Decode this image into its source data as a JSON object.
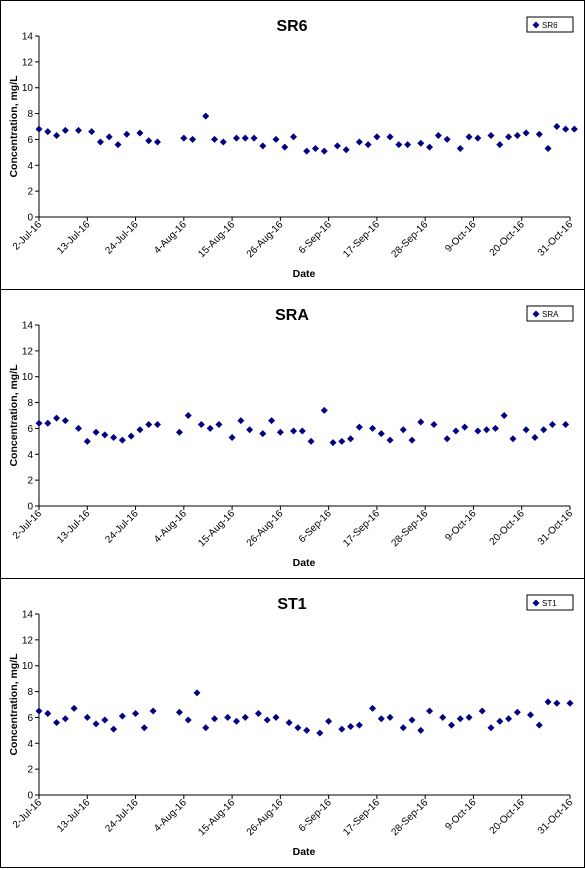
{
  "chart_data": [
    {
      "type": "scatter",
      "title": "SR6",
      "xlabel": "Date",
      "ylabel": "Concentration, mg/L",
      "legend": {
        "entries": [
          "SR6"
        ],
        "position": "top-right"
      },
      "ylim": [
        0,
        14
      ],
      "yticks": [
        "0",
        "2",
        "4",
        "6",
        "8",
        "10",
        "12",
        "14"
      ],
      "xlim": [
        "2-Jul-16",
        "31-Oct-16"
      ],
      "xticks": [
        "2-Jul-16",
        "13-Jul-16",
        "24-Jul-16",
        "4-Aug-16",
        "15-Aug-16",
        "26-Aug-16",
        "6-Sep-16",
        "17-Sep-16",
        "28-Sep-16",
        "9-Oct-16",
        "20-Oct-16",
        "31-Oct-16"
      ],
      "marker_color": "#000080",
      "series": [
        {
          "name": "SR6",
          "x": [
            "2016-07-02",
            "2016-07-04",
            "2016-07-06",
            "2016-07-08",
            "2016-07-11",
            "2016-07-14",
            "2016-07-16",
            "2016-07-18",
            "2016-07-20",
            "2016-07-22",
            "2016-07-25",
            "2016-07-27",
            "2016-07-29",
            "2016-08-04",
            "2016-08-06",
            "2016-08-09",
            "2016-08-11",
            "2016-08-13",
            "2016-08-16",
            "2016-08-18",
            "2016-08-20",
            "2016-08-22",
            "2016-08-25",
            "2016-08-27",
            "2016-08-29",
            "2016-09-01",
            "2016-09-03",
            "2016-09-05",
            "2016-09-08",
            "2016-09-10",
            "2016-09-13",
            "2016-09-15",
            "2016-09-17",
            "2016-09-20",
            "2016-09-22",
            "2016-09-24",
            "2016-09-27",
            "2016-09-29",
            "2016-10-01",
            "2016-10-03",
            "2016-10-06",
            "2016-10-08",
            "2016-10-10",
            "2016-10-13",
            "2016-10-15",
            "2016-10-17",
            "2016-10-19",
            "2016-10-21",
            "2016-10-24",
            "2016-10-26",
            "2016-10-28",
            "2016-10-30",
            "2016-11-01"
          ],
          "y": [
            6.8,
            6.6,
            6.3,
            6.7,
            6.7,
            6.6,
            5.8,
            6.2,
            5.6,
            6.4,
            6.5,
            5.9,
            5.8,
            6.1,
            6.0,
            7.8,
            6.0,
            5.8,
            6.1,
            6.1,
            6.1,
            5.5,
            6.0,
            5.4,
            6.2,
            5.1,
            5.3,
            5.1,
            5.5,
            5.2,
            5.8,
            5.6,
            6.2,
            6.2,
            5.6,
            5.6,
            5.7,
            5.4,
            6.3,
            6.0,
            5.3,
            6.2,
            6.1,
            6.3,
            5.6,
            6.2,
            6.3,
            6.5,
            6.4,
            5.3,
            7.0,
            6.8,
            6.8
          ]
        }
      ]
    },
    {
      "type": "scatter",
      "title": "SRA",
      "xlabel": "Date",
      "ylabel": "Concentration, mg/L",
      "legend": {
        "entries": [
          "SRA"
        ],
        "position": "top-right"
      },
      "ylim": [
        0,
        14
      ],
      "yticks": [
        "0",
        "2",
        "4",
        "6",
        "8",
        "10",
        "12",
        "14"
      ],
      "xlim": [
        "2-Jul-16",
        "31-Oct-16"
      ],
      "xticks": [
        "2-Jul-16",
        "13-Jul-16",
        "24-Jul-16",
        "4-Aug-16",
        "15-Aug-16",
        "26-Aug-16",
        "6-Sep-16",
        "17-Sep-16",
        "28-Sep-16",
        "9-Oct-16",
        "20-Oct-16",
        "31-Oct-16"
      ],
      "marker_color": "#000080",
      "series": [
        {
          "name": "SRA",
          "x": [
            "2016-07-02",
            "2016-07-04",
            "2016-07-06",
            "2016-07-08",
            "2016-07-11",
            "2016-07-13",
            "2016-07-15",
            "2016-07-17",
            "2016-07-19",
            "2016-07-21",
            "2016-07-23",
            "2016-07-25",
            "2016-07-27",
            "2016-07-29",
            "2016-08-03",
            "2016-08-05",
            "2016-08-08",
            "2016-08-10",
            "2016-08-12",
            "2016-08-15",
            "2016-08-17",
            "2016-08-19",
            "2016-08-22",
            "2016-08-24",
            "2016-08-26",
            "2016-08-29",
            "2016-08-31",
            "2016-09-02",
            "2016-09-05",
            "2016-09-07",
            "2016-09-09",
            "2016-09-11",
            "2016-09-13",
            "2016-09-16",
            "2016-09-18",
            "2016-09-20",
            "2016-09-23",
            "2016-09-25",
            "2016-09-27",
            "2016-09-30",
            "2016-10-03",
            "2016-10-05",
            "2016-10-07",
            "2016-10-10",
            "2016-10-12",
            "2016-10-14",
            "2016-10-16",
            "2016-10-18",
            "2016-10-21",
            "2016-10-23",
            "2016-10-25",
            "2016-10-27",
            "2016-10-30"
          ],
          "y": [
            6.4,
            6.4,
            6.8,
            6.6,
            6.0,
            5.0,
            5.7,
            5.5,
            5.3,
            5.1,
            5.4,
            5.9,
            6.3,
            6.3,
            5.7,
            7.0,
            6.3,
            6.0,
            6.3,
            5.3,
            6.6,
            5.9,
            5.6,
            6.6,
            5.7,
            5.8,
            5.8,
            5.0,
            7.4,
            4.9,
            5.0,
            5.2,
            6.1,
            6.0,
            5.6,
            5.1,
            5.9,
            5.1,
            6.5,
            6.3,
            5.2,
            5.8,
            6.1,
            5.8,
            5.9,
            6.0,
            7.0,
            5.2,
            5.9,
            5.3,
            5.9,
            6.3,
            6.3
          ]
        }
      ]
    },
    {
      "type": "scatter",
      "title": "ST1",
      "xlabel": "Date",
      "ylabel": "Concentration, mg/L",
      "legend": {
        "entries": [
          "ST1"
        ],
        "position": "top-right"
      },
      "ylim": [
        0,
        14
      ],
      "yticks": [
        "0",
        "2",
        "4",
        "6",
        "8",
        "10",
        "12",
        "14"
      ],
      "xlim": [
        "2-Jul-16",
        "31-Oct-16"
      ],
      "xticks": [
        "2-Jul-16",
        "13-Jul-16",
        "24-Jul-16",
        "4-Aug-16",
        "15-Aug-16",
        "26-Aug-16",
        "6-Sep-16",
        "17-Sep-16",
        "28-Sep-16",
        "9-Oct-16",
        "20-Oct-16",
        "31-Oct-16"
      ],
      "marker_color": "#000080",
      "series": [
        {
          "name": "ST1",
          "x": [
            "2016-07-02",
            "2016-07-04",
            "2016-07-06",
            "2016-07-08",
            "2016-07-10",
            "2016-07-13",
            "2016-07-15",
            "2016-07-17",
            "2016-07-19",
            "2016-07-21",
            "2016-07-24",
            "2016-07-26",
            "2016-07-28",
            "2016-08-03",
            "2016-08-05",
            "2016-08-07",
            "2016-08-09",
            "2016-08-11",
            "2016-08-14",
            "2016-08-16",
            "2016-08-18",
            "2016-08-21",
            "2016-08-23",
            "2016-08-25",
            "2016-08-28",
            "2016-08-30",
            "2016-09-01",
            "2016-09-04",
            "2016-09-06",
            "2016-09-09",
            "2016-09-11",
            "2016-09-13",
            "2016-09-16",
            "2016-09-18",
            "2016-09-20",
            "2016-09-23",
            "2016-09-25",
            "2016-09-27",
            "2016-09-29",
            "2016-10-02",
            "2016-10-04",
            "2016-10-06",
            "2016-10-08",
            "2016-10-11",
            "2016-10-13",
            "2016-10-15",
            "2016-10-17",
            "2016-10-19",
            "2016-10-22",
            "2016-10-24",
            "2016-10-26",
            "2016-10-28",
            "2016-10-31"
          ],
          "y": [
            6.5,
            6.3,
            5.6,
            5.9,
            6.7,
            6.0,
            5.5,
            5.8,
            5.1,
            6.1,
            6.3,
            5.2,
            6.5,
            6.4,
            5.8,
            7.9,
            5.2,
            5.9,
            6.0,
            5.7,
            6.0,
            6.3,
            5.8,
            6.0,
            5.6,
            5.2,
            5.0,
            4.8,
            5.7,
            5.1,
            5.3,
            5.4,
            6.7,
            5.9,
            6.0,
            5.2,
            5.8,
            5.0,
            6.5,
            6.0,
            5.4,
            5.9,
            6.0,
            6.5,
            5.2,
            5.7,
            5.9,
            6.4,
            6.2,
            5.4,
            7.2,
            7.1,
            7.1
          ]
        }
      ]
    }
  ]
}
